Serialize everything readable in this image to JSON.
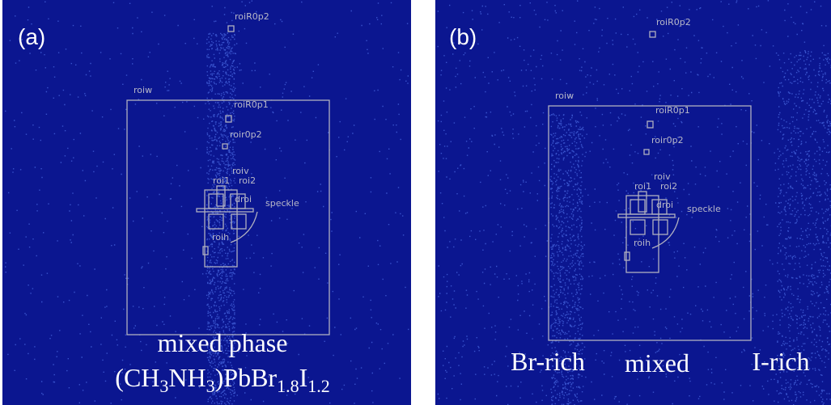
{
  "panels": [
    {
      "label": "(a)",
      "rois": [
        "roiR0p2",
        "roiw",
        "roiR0p1",
        "roir0p2",
        "roiv",
        "roi1",
        "roi2",
        "droi",
        "speckle",
        "roih"
      ],
      "captions": [
        [
          {
            "text": "mixed phase"
          }
        ],
        [
          {
            "text": "(CH"
          },
          {
            "text": "3",
            "sub": true
          },
          {
            "text": "NH"
          },
          {
            "text": "3",
            "sub": true
          },
          {
            "text": ")PbBr"
          },
          {
            "text": "1.8",
            "sub": true
          },
          {
            "text": "I"
          },
          {
            "text": "1.2",
            "sub": true
          }
        ]
      ]
    },
    {
      "label": "(b)",
      "rois": [
        "roiR0p2",
        "roiw",
        "roiR0p1",
        "roir0p2",
        "roiv",
        "roi1",
        "roi2",
        "droi",
        "speckle",
        "roih"
      ],
      "captions": [
        [
          {
            "text": "Br-rich"
          }
        ],
        [
          {
            "text": "mixed"
          }
        ],
        [
          {
            "text": "I-rich"
          }
        ]
      ]
    }
  ]
}
